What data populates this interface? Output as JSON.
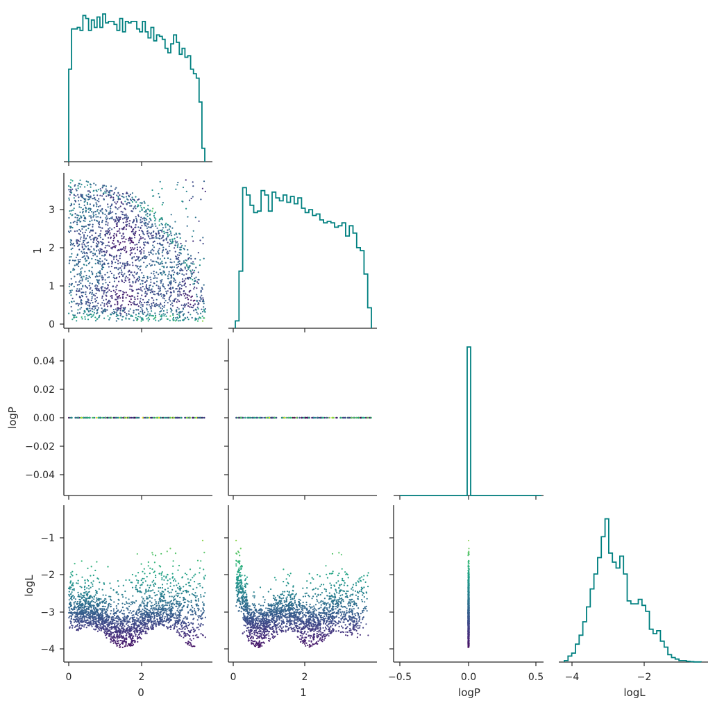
{
  "chart_data": [
    {
      "panel": "0",
      "type": "histogram",
      "x_range": [
        0,
        3.7
      ],
      "x_ticks": [
        0,
        2
      ],
      "bin_heights": [
        0.62,
        0.89,
        0.89,
        0.9,
        0.88,
        0.98,
        0.96,
        0.88,
        0.95,
        0.9,
        0.97,
        0.9,
        0.99,
        0.93,
        0.94,
        0.94,
        0.92,
        0.88,
        0.96,
        0.87,
        0.94,
        0.93,
        0.94,
        0.94,
        0.89,
        0.87,
        0.94,
        0.87,
        0.83,
        0.9,
        0.81,
        0.85,
        0.84,
        0.82,
        0.76,
        0.73,
        0.79,
        0.85,
        0.8,
        0.72,
        0.76,
        0.7,
        0.71,
        0.62,
        0.59,
        0.56,
        0.4,
        0.09
      ],
      "color": "#008080"
    },
    {
      "panel": "1",
      "type": "histogram",
      "x_range": [
        0,
        3.85
      ],
      "x_ticks": [
        0,
        2
      ],
      "bin_heights": [
        0.05,
        0.39,
        0.96,
        0.91,
        0.84,
        0.79,
        0.8,
        0.94,
        0.91,
        0.8,
        0.93,
        0.89,
        0.87,
        0.91,
        0.86,
        0.9,
        0.85,
        0.89,
        0.82,
        0.79,
        0.81,
        0.77,
        0.78,
        0.74,
        0.72,
        0.73,
        0.72,
        0.69,
        0.7,
        0.72,
        0.63,
        0.7,
        0.65,
        0.55,
        0.53,
        0.37,
        0.14
      ],
      "color": "#008080"
    },
    {
      "panel": "logP",
      "type": "histogram",
      "x_range": [
        -0.55,
        0.55
      ],
      "x_ticks": [
        -0.5,
        0.0,
        0.5
      ],
      "tick_labels": [
        "−0.5",
        "0.0",
        "0.5"
      ],
      "spike_at": 0.0,
      "color": "#008080"
    },
    {
      "panel": "logL",
      "type": "histogram",
      "x_range": [
        -4.25,
        -0.3
      ],
      "x_ticks": [
        -4,
        -2
      ],
      "tick_labels": [
        "−4",
        "−2"
      ],
      "bin_heights": [
        0.01,
        0.04,
        0.06,
        0.12,
        0.18,
        0.27,
        0.37,
        0.49,
        0.59,
        0.7,
        0.84,
        0.96,
        0.73,
        0.67,
        0.63,
        0.71,
        0.59,
        0.41,
        0.39,
        0.39,
        0.42,
        0.38,
        0.34,
        0.22,
        0.19,
        0.21,
        0.14,
        0.1,
        0.05,
        0.03,
        0.02,
        0.01,
        0.01,
        0.005,
        0.003,
        0.001,
        0.001
      ],
      "color": "#008080"
    },
    {
      "panel": "0 vs 1",
      "type": "scatter",
      "x_range": [
        -0.15,
        3.85
      ],
      "y_range": [
        -0.1,
        3.9
      ],
      "y_ticks": [
        0,
        1,
        2,
        3
      ],
      "colormap": "viridis",
      "n_points": 2200
    },
    {
      "panel": "0 vs logP",
      "type": "scatter",
      "y_range": [
        -0.055,
        0.055
      ],
      "y_ticks": [
        0.04,
        0.02,
        0.0,
        -0.02,
        -0.04
      ],
      "tick_labels": [
        "0.04",
        "0.02",
        "0.00",
        "−0.02",
        "−0.04"
      ],
      "points_at": 0.0
    },
    {
      "panel": "1 vs logP",
      "type": "scatter",
      "points_at": 0.0
    },
    {
      "panel": "0 vs logL",
      "type": "scatter",
      "y_range": [
        -4.3,
        -0.25
      ],
      "y_ticks": [
        -1,
        -2,
        -3,
        -4
      ],
      "tick_labels": [
        "−1",
        "−2",
        "−3",
        "−4"
      ],
      "colormap": "viridis",
      "n_points": 2200
    },
    {
      "panel": "1 vs logL",
      "type": "scatter",
      "colormap": "viridis",
      "n_points": 2200
    },
    {
      "panel": "logP vs logL",
      "type": "scatter",
      "colormap": "viridis",
      "points_at": 0.0
    }
  ],
  "labels": {
    "col0_xlabel": "0",
    "col1_xlabel": "1",
    "col2_xlabel": "logP",
    "col3_xlabel": "logL",
    "row1_ylabel": "1",
    "row2_ylabel": "logP",
    "row3_ylabel": "logL"
  },
  "ticks": {
    "x0": [
      "0",
      "2"
    ],
    "x1": [
      "0",
      "2"
    ],
    "x2": [
      "−0.5",
      "0.0",
      "0.5"
    ],
    "x3": [
      "−4",
      "−2"
    ],
    "y1": [
      "0",
      "1",
      "2",
      "3"
    ],
    "y2": [
      "0.04",
      "0.02",
      "0.00",
      "−0.02",
      "−0.04"
    ],
    "y3": [
      "−1",
      "−2",
      "−3",
      "−4"
    ]
  },
  "colors": {
    "hist": "#008080",
    "axes": "#262626"
  }
}
